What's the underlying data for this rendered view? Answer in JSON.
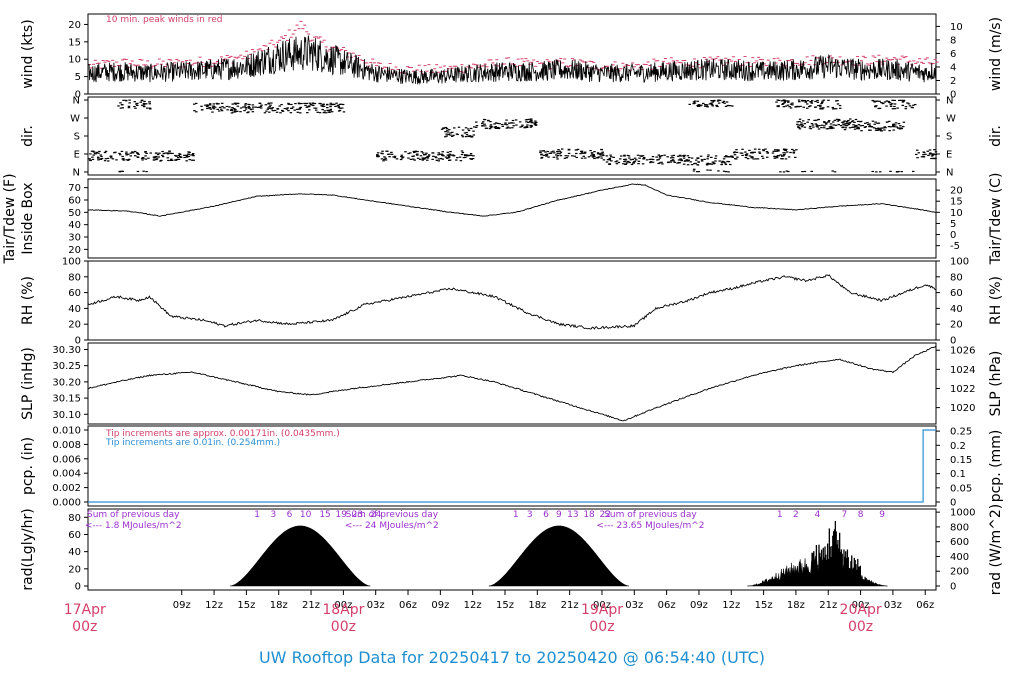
{
  "footer": {
    "title": "UW Rooftop Data for 20250417  to  20250420 @ 06:54:40  (UTC)"
  },
  "colors": {
    "peak": "#d4406a",
    "purple": "#9b30d0",
    "blue": "#2b8fd6",
    "date": "#d4406a"
  },
  "time_axis": {
    "hour_labels": [
      "09z",
      "12z",
      "15z",
      "18z",
      "21z",
      "00z",
      "03z",
      "06z",
      "09z",
      "12z",
      "15z",
      "18z",
      "21z",
      "00z",
      "03z",
      "06z",
      "09z",
      "12z",
      "15z",
      "18z",
      "21z",
      "00z",
      "03z",
      "06z"
    ],
    "hour_positions": [
      9,
      12,
      15,
      18,
      21,
      24,
      27,
      30,
      33,
      36,
      39,
      42,
      45,
      48,
      51,
      54,
      57,
      60,
      63,
      66,
      69,
      72,
      75,
      78
    ],
    "day_labels": [
      {
        "date": "17Apr",
        "hour": "00z",
        "t": 0
      },
      {
        "date": "18Apr",
        "hour": "00z",
        "t": 24
      },
      {
        "date": "19Apr",
        "hour": "00z",
        "t": 48
      },
      {
        "date": "20Apr",
        "hour": "00z",
        "t": 72
      }
    ],
    "t_range": [
      0.3,
      79
    ]
  },
  "chart_data": [
    {
      "type": "line",
      "name": "wind",
      "ylabel": "wind (kts)",
      "ylabel_right": "wind (m/s)",
      "ylim": [
        0,
        23
      ],
      "yticks": [
        0,
        5,
        10,
        15,
        20
      ],
      "yticks_right": [
        0,
        2,
        4,
        6,
        8,
        10
      ],
      "annotation": "10 min. peak winds in red",
      "series_points": [
        [
          0.3,
          6
        ],
        [
          3,
          6.5
        ],
        [
          6,
          6
        ],
        [
          9,
          6.5
        ],
        [
          12,
          7
        ],
        [
          15,
          8
        ],
        [
          18,
          11
        ],
        [
          21,
          12
        ],
        [
          23,
          10
        ],
        [
          25,
          8
        ],
        [
          27,
          6
        ],
        [
          30,
          5
        ],
        [
          33,
          5
        ],
        [
          36,
          6
        ],
        [
          39,
          6.5
        ],
        [
          42,
          6.5
        ],
        [
          45,
          7
        ],
        [
          48,
          6
        ],
        [
          51,
          6
        ],
        [
          54,
          6.5
        ],
        [
          57,
          7
        ],
        [
          60,
          7
        ],
        [
          63,
          6.5
        ],
        [
          66,
          7
        ],
        [
          69,
          8
        ],
        [
          72,
          7
        ],
        [
          75,
          7
        ],
        [
          78,
          6
        ],
        [
          79,
          7
        ]
      ],
      "peak_points": [
        [
          0.3,
          8
        ],
        [
          3,
          9
        ],
        [
          6,
          8.5
        ],
        [
          9,
          9
        ],
        [
          12,
          9.5
        ],
        [
          15,
          11
        ],
        [
          18,
          15
        ],
        [
          20,
          20
        ],
        [
          21,
          16
        ],
        [
          23,
          13
        ],
        [
          25,
          11
        ],
        [
          27,
          8
        ],
        [
          30,
          7
        ],
        [
          33,
          7
        ],
        [
          36,
          8
        ],
        [
          39,
          9
        ],
        [
          42,
          8.5
        ],
        [
          45,
          9
        ],
        [
          48,
          8
        ],
        [
          51,
          8
        ],
        [
          54,
          9
        ],
        [
          57,
          9
        ],
        [
          60,
          9.5
        ],
        [
          63,
          9
        ],
        [
          66,
          9.5
        ],
        [
          69,
          10
        ],
        [
          72,
          9.5
        ],
        [
          75,
          10
        ],
        [
          78,
          9
        ],
        [
          79,
          9
        ]
      ]
    },
    {
      "type": "scatter",
      "name": "dir",
      "ylabel": "dir.",
      "ylabel_right": "dir.",
      "yticks": [
        "N",
        "E",
        "S",
        "W",
        "N"
      ],
      "clusters": [
        {
          "t0": 0.3,
          "t1": 10,
          "center": 80
        },
        {
          "t0": 3,
          "t1": 6,
          "center": 340
        },
        {
          "t0": 10,
          "t1": 24,
          "center": 320
        },
        {
          "t0": 27,
          "t1": 36,
          "center": 80
        },
        {
          "t0": 33,
          "t1": 36,
          "center": 200
        },
        {
          "t0": 36,
          "t1": 42,
          "center": 240
        },
        {
          "t0": 42,
          "t1": 48,
          "center": 90
        },
        {
          "t0": 48,
          "t1": 60,
          "center": 60
        },
        {
          "t0": 56,
          "t1": 60,
          "center": 350
        },
        {
          "t0": 60,
          "t1": 66,
          "center": 90
        },
        {
          "t0": 64,
          "t1": 70,
          "center": 340
        },
        {
          "t0": 66,
          "t1": 72,
          "center": 240
        },
        {
          "t0": 70,
          "t1": 76,
          "center": 230
        },
        {
          "t0": 73,
          "t1": 77,
          "center": 340
        },
        {
          "t0": 77,
          "t1": 79,
          "center": 90
        }
      ]
    },
    {
      "type": "line",
      "name": "temp",
      "ylabel": "Tair/Tdew (F)",
      "ylabel2": "Inside Box",
      "ylabel_right": "Tair/Tdew (C)",
      "ylim": [
        13,
        77
      ],
      "yticks": [
        20,
        30,
        40,
        50,
        60,
        70
      ],
      "yticks_right": [
        -5,
        0,
        5,
        10,
        15,
        20
      ],
      "series_points": [
        [
          0.3,
          52
        ],
        [
          4,
          51
        ],
        [
          7,
          47
        ],
        [
          12,
          55
        ],
        [
          16,
          63
        ],
        [
          20,
          65
        ],
        [
          23,
          64
        ],
        [
          26,
          60
        ],
        [
          30,
          55
        ],
        [
          34,
          50
        ],
        [
          37,
          47
        ],
        [
          40,
          50
        ],
        [
          44,
          60
        ],
        [
          48,
          68
        ],
        [
          51,
          73
        ],
        [
          52,
          72
        ],
        [
          54,
          64
        ],
        [
          58,
          58
        ],
        [
          62,
          54
        ],
        [
          66,
          52
        ],
        [
          70,
          55
        ],
        [
          74,
          57
        ],
        [
          77,
          53
        ],
        [
          79,
          50
        ]
      ]
    },
    {
      "type": "line",
      "name": "rh",
      "ylabel": "RH (%)",
      "ylabel_right": "RH (%)",
      "ylim": [
        0,
        100
      ],
      "yticks": [
        0,
        20,
        40,
        60,
        80,
        100
      ],
      "series_points": [
        [
          0.3,
          45
        ],
        [
          3,
          55
        ],
        [
          5,
          50
        ],
        [
          6,
          55
        ],
        [
          8,
          30
        ],
        [
          11,
          25
        ],
        [
          13,
          18
        ],
        [
          16,
          25
        ],
        [
          19,
          20
        ],
        [
          23,
          25
        ],
        [
          26,
          45
        ],
        [
          30,
          55
        ],
        [
          34,
          65
        ],
        [
          38,
          55
        ],
        [
          41,
          35
        ],
        [
          44,
          20
        ],
        [
          47,
          15
        ],
        [
          51,
          18
        ],
        [
          53,
          40
        ],
        [
          56,
          50
        ],
        [
          58,
          60
        ],
        [
          60,
          65
        ],
        [
          63,
          75
        ],
        [
          65,
          80
        ],
        [
          67,
          75
        ],
        [
          69,
          82
        ],
        [
          71,
          60
        ],
        [
          74,
          50
        ],
        [
          76,
          60
        ],
        [
          78,
          70
        ],
        [
          79,
          65
        ]
      ]
    },
    {
      "type": "line",
      "name": "slp",
      "ylabel": "SLP (inHg)",
      "ylabel_right": "SLP (hPa)",
      "ylim": [
        30.07,
        30.32
      ],
      "yticks": [
        30.1,
        30.15,
        30.2,
        30.25,
        30.3
      ],
      "yticks_right": [
        1020,
        1022,
        1024,
        1026
      ],
      "series_points": [
        [
          0.3,
          30.18
        ],
        [
          3,
          30.2
        ],
        [
          6,
          30.22
        ],
        [
          10,
          30.23
        ],
        [
          14,
          30.2
        ],
        [
          18,
          30.17
        ],
        [
          21,
          30.16
        ],
        [
          25,
          30.18
        ],
        [
          30,
          30.2
        ],
        [
          35,
          30.22
        ],
        [
          38,
          30.2
        ],
        [
          42,
          30.16
        ],
        [
          46,
          30.12
        ],
        [
          49,
          30.09
        ],
        [
          50,
          30.08
        ],
        [
          53,
          30.12
        ],
        [
          58,
          30.18
        ],
        [
          62,
          30.22
        ],
        [
          66,
          30.25
        ],
        [
          70,
          30.27
        ],
        [
          73,
          30.24
        ],
        [
          75,
          30.23
        ],
        [
          77,
          30.28
        ],
        [
          79,
          30.31
        ]
      ]
    },
    {
      "type": "line",
      "name": "pcp",
      "ylabel": "pcp. (in)",
      "ylabel_right": "pcp. (mm)",
      "ylim": [
        0,
        0.01
      ],
      "yticks": [
        "0.000",
        "0.002",
        "0.004",
        "0.006",
        "0.008",
        "0.010"
      ],
      "yticks_right": [
        "0",
        "0.05",
        "0.1",
        "0.15",
        "0.2",
        "0.25"
      ],
      "annotation1": "Tip increments are approx. 0.00171in. (0.0435mm.)",
      "annotation2": "Tip increments are 0.01in. (0.254mm.)",
      "series_points": [
        [
          0.3,
          0
        ],
        [
          77.8,
          0
        ],
        [
          77.8,
          0.01
        ],
        [
          79,
          0.01
        ]
      ]
    },
    {
      "type": "area",
      "name": "rad",
      "ylabel": "rad(Lgly/hr)",
      "ylabel_right": "rad (W/m^2)",
      "ylim": [
        0,
        85
      ],
      "yticks": [
        0,
        20,
        40,
        60,
        80
      ],
      "yticks_right": [
        0,
        200,
        400,
        600,
        800,
        1000
      ],
      "days": [
        {
          "sunrise": 13.5,
          "sunset": 26.5,
          "peak": 70
        },
        {
          "sunrise": 37.5,
          "sunset": 50.5,
          "peak": 70
        },
        {
          "sunrise": 61.5,
          "sunset": 74.5,
          "peak": 25
        }
      ],
      "spikes": [
        [
          68.5,
          45
        ],
        [
          69.5,
          80
        ],
        [
          70,
          60
        ],
        [
          70.5,
          50
        ],
        [
          71,
          40
        ]
      ],
      "sum_labels": [
        {
          "line1": "Sum of previous day",
          "line2": "<--- 1.8 MJoules/m^2",
          "t": 4.5
        },
        {
          "line1": "Sum of previous day",
          "line2": "<--- 24 MJoules/m^2",
          "t": 28.5
        },
        {
          "line1": "Sum of previous day",
          "line2": "<--- 23.65 MJoules/m^2",
          "t": 52.5
        }
      ],
      "hour_marks": [
        {
          "text": "1",
          "t": 16
        },
        {
          "text": "3",
          "t": 17.5
        },
        {
          "text": "6",
          "t": 19
        },
        {
          "text": "10",
          "t": 20.5
        },
        {
          "text": "15",
          "t": 22.3
        },
        {
          "text": "19",
          "t": 23.8
        },
        {
          "text": "23",
          "t": 25.3
        },
        {
          "text": "24",
          "t": 27
        },
        {
          "text": "1",
          "t": 40
        },
        {
          "text": "3",
          "t": 41.3
        },
        {
          "text": "6",
          "t": 42.8
        },
        {
          "text": "9",
          "t": 44
        },
        {
          "text": "13",
          "t": 45.3
        },
        {
          "text": "18",
          "t": 46.8
        },
        {
          "text": "22",
          "t": 48.3
        },
        {
          "text": "1",
          "t": 64.5
        },
        {
          "text": "2",
          "t": 66
        },
        {
          "text": "4",
          "t": 68
        },
        {
          "text": "7",
          "t": 70.5
        },
        {
          "text": "8",
          "t": 72
        },
        {
          "text": "9",
          "t": 74
        }
      ]
    }
  ]
}
